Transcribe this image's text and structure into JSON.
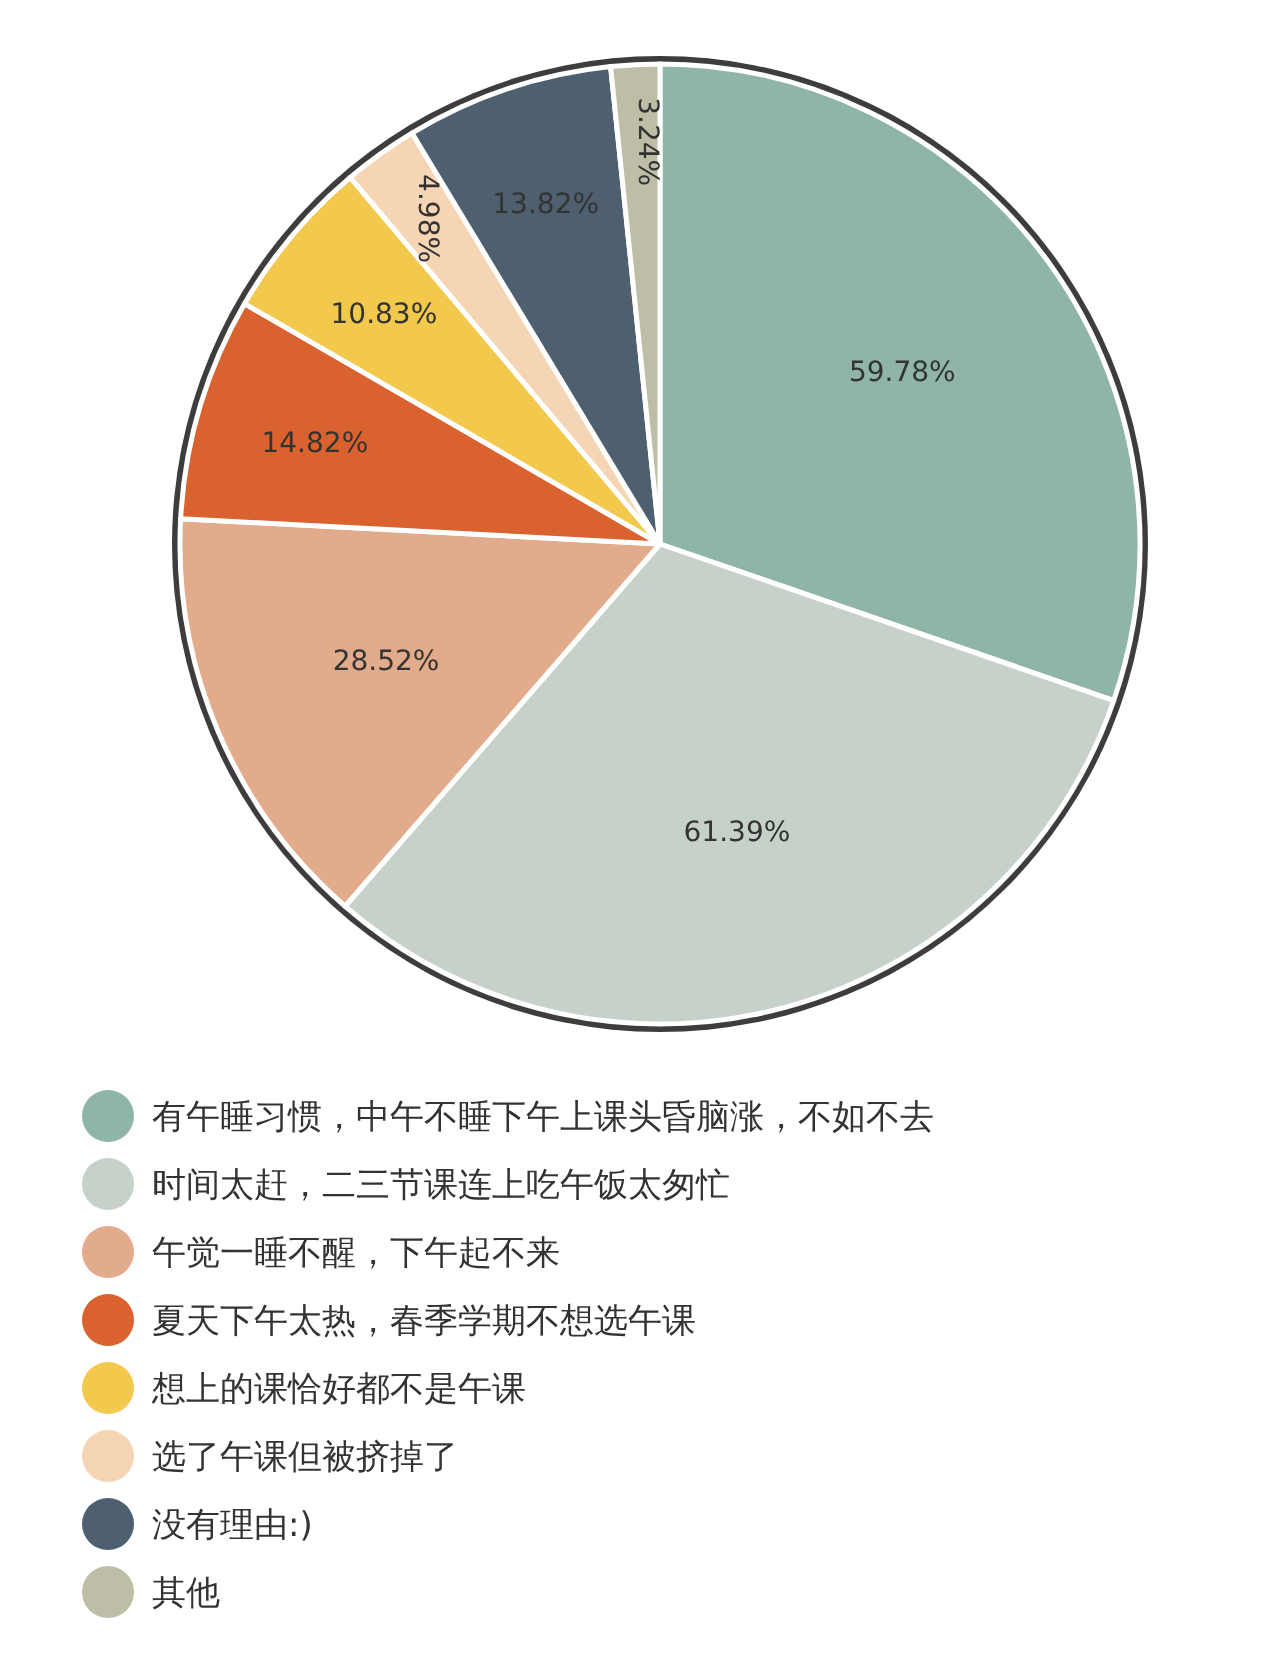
{
  "chart_data": {
    "type": "pie",
    "categories": [
      "有午睡习惯，中午不睡下午上课头昏脑涨，不如不去",
      "时间太赶，二三节课连上吃午饭太匆忙",
      "午觉一睡不醒，下午起不来",
      "夏天下午太热，春季学期不想选午课",
      "想上的课恰好都不是午课",
      "选了午课但被挤掉了",
      "没有理由:)",
      "其他"
    ],
    "values": [
      59.78,
      61.39,
      28.52,
      14.82,
      10.83,
      4.98,
      13.82,
      3.24
    ],
    "value_labels": [
      "59.78%",
      "61.39%",
      "28.52%",
      "14.82%",
      "10.83%",
      "4.98%",
      "13.82%",
      "3.24%"
    ],
    "colors": [
      "#8fb5aa",
      "#c6d2c9",
      "#e2ab8c",
      "#d9622f",
      "#f2c94c",
      "#f5d5b3",
      "#4e5f6f",
      "#bebea6"
    ],
    "legend": "bottom"
  }
}
